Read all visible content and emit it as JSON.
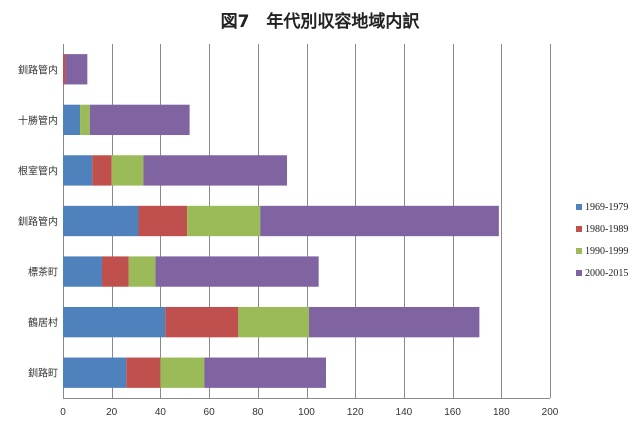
{
  "chart_data": {
    "type": "bar",
    "orientation": "horizontal",
    "stacked": true,
    "title": "図7　年代別収容地域内訳",
    "categories": [
      "釧路町",
      "鶴居村",
      "標茶町",
      "釧路管内",
      "根室管内",
      "十勝管内",
      "釧路管内"
    ],
    "series": [
      {
        "name": "1969-1979",
        "color": "#4f81bd",
        "values": [
          26,
          42,
          16,
          31,
          12,
          7,
          0
        ]
      },
      {
        "name": "1980-1989",
        "color": "#c0504d",
        "values": [
          14,
          30,
          11,
          20,
          8,
          0,
          1
        ]
      },
      {
        "name": "1990-1999",
        "color": "#9bbb59",
        "values": [
          18,
          29,
          11,
          30,
          13,
          4,
          0
        ]
      },
      {
        "name": "2000-2015",
        "color": "#8064a2",
        "values": [
          50,
          70,
          67,
          98,
          59,
          41,
          9
        ]
      }
    ],
    "xlim": [
      0,
      200
    ],
    "xticks": [
      0,
      20,
      40,
      60,
      80,
      100,
      120,
      140,
      160,
      180,
      200
    ],
    "grid": "vertical",
    "legend_position": "right"
  }
}
